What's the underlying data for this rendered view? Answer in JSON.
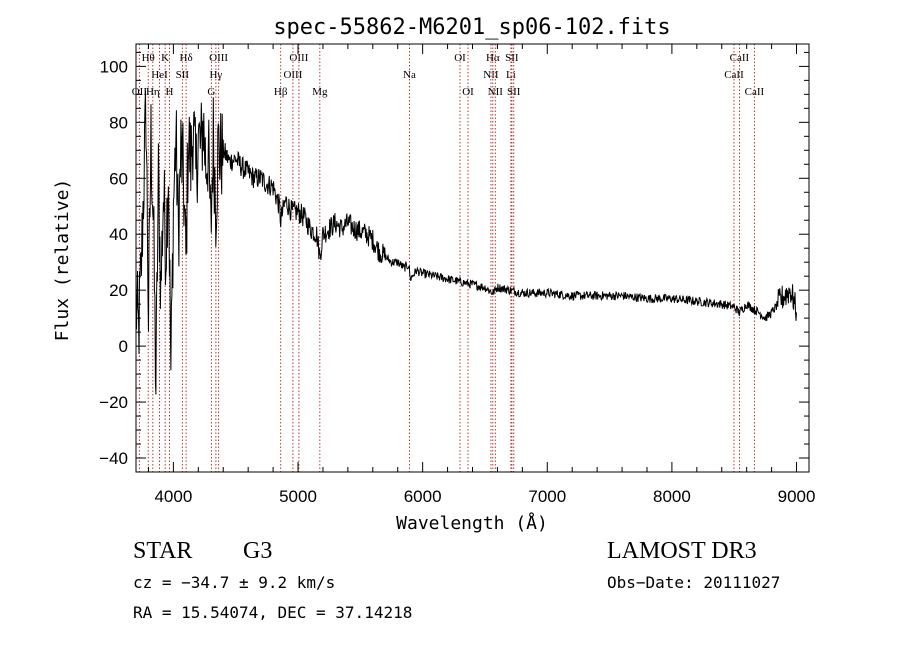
{
  "chart_data": {
    "type": "line",
    "title": "spec-55862-M6201_sp06-102.fits",
    "xlabel": "Wavelength (Å)",
    "ylabel": "Flux (relative)",
    "xlim": [
      3700,
      9100
    ],
    "ylim": [
      -45,
      108
    ],
    "x_ticks": [
      4000,
      5000,
      6000,
      7000,
      8000,
      9000
    ],
    "x_tick_labels": [
      "4000",
      "5000",
      "6000",
      "7000",
      "8000",
      "9000"
    ],
    "y_ticks": [
      -40,
      -20,
      0,
      20,
      40,
      60,
      80,
      100
    ],
    "y_tick_labels": [
      "−40",
      "−20",
      "0",
      "20",
      "40",
      "60",
      "80",
      "100"
    ],
    "x_minor_step": 200,
    "y_minor_step": 5,
    "line_color": "#000000",
    "marker_color": "#b22222",
    "series": [
      {
        "name": "flux",
        "x": [
          3700,
          3720,
          3740,
          3760,
          3780,
          3800,
          3820,
          3840,
          3860,
          3880,
          3900,
          3920,
          3940,
          3960,
          3980,
          4000,
          4020,
          4040,
          4060,
          4080,
          4100,
          4120,
          4140,
          4160,
          4180,
          4200,
          4220,
          4240,
          4260,
          4280,
          4300,
          4320,
          4340,
          4360,
          4380,
          4400,
          4450,
          4500,
          4550,
          4600,
          4650,
          4700,
          4750,
          4800,
          4850,
          4861,
          4900,
          4950,
          5000,
          5050,
          5100,
          5150,
          5175,
          5200,
          5250,
          5300,
          5350,
          5400,
          5450,
          5500,
          5550,
          5600,
          5650,
          5700,
          5750,
          5800,
          5850,
          5890,
          5900,
          5950,
          6000,
          6100,
          6200,
          6300,
          6400,
          6500,
          6563,
          6600,
          6700,
          6800,
          6900,
          7000,
          7200,
          7400,
          7600,
          7800,
          8000,
          8200,
          8400,
          8500,
          8542,
          8600,
          8662,
          8700,
          8750,
          8800,
          8850,
          8900,
          8950,
          8980,
          9000
        ],
        "y": [
          15,
          5,
          25,
          55,
          85,
          10,
          75,
          45,
          -15,
          60,
          20,
          55,
          35,
          65,
          -10,
          50,
          75,
          40,
          70,
          60,
          30,
          75,
          65,
          80,
          60,
          75,
          70,
          80,
          65,
          70,
          40,
          75,
          50,
          72,
          68,
          70,
          66,
          67,
          64,
          62,
          60,
          60,
          58,
          57,
          50,
          45,
          52,
          48,
          48,
          46,
          42,
          40,
          32,
          40,
          42,
          44,
          42,
          44,
          42,
          41,
          40,
          38,
          34,
          32,
          30,
          30,
          28,
          29,
          24,
          27,
          26,
          25,
          24,
          23,
          22,
          21,
          19,
          21,
          20,
          19,
          19,
          19,
          18,
          18,
          18,
          17,
          17,
          16,
          15,
          14,
          12,
          15,
          13,
          12,
          10,
          12,
          15,
          18,
          20,
          16,
          12
        ]
      }
    ],
    "line_markers": [
      {
        "name": "OII",
        "x": 3727,
        "row": 2
      },
      {
        "name": "Hθ",
        "x": 3798,
        "row": 0
      },
      {
        "name": "Hη",
        "x": 3835,
        "row": 2
      },
      {
        "name": "HeI",
        "x": 3889,
        "row": 1
      },
      {
        "name": "K",
        "x": 3934,
        "row": 0
      },
      {
        "name": "H",
        "x": 3969,
        "row": 2
      },
      {
        "name": "SII",
        "x": 4072,
        "row": 1
      },
      {
        "name": "Hδ",
        "x": 4102,
        "row": 0
      },
      {
        "name": "G",
        "x": 4305,
        "row": 2
      },
      {
        "name": "Hγ",
        "x": 4341,
        "row": 1
      },
      {
        "name": "OIII",
        "x": 4363,
        "row": 0
      },
      {
        "name": "Hβ",
        "x": 4861,
        "row": 2
      },
      {
        "name": "OIII",
        "x": 4959,
        "row": 1
      },
      {
        "name": "OIII",
        "x": 5007,
        "row": 0
      },
      {
        "name": "Mg",
        "x": 5175,
        "row": 2
      },
      {
        "name": "Na",
        "x": 5894,
        "row": 1
      },
      {
        "name": "OI",
        "x": 6300,
        "row": 0
      },
      {
        "name": "OI",
        "x": 6364,
        "row": 2
      },
      {
        "name": "NII",
        "x": 6548,
        "row": 1
      },
      {
        "name": "Hα",
        "x": 6563,
        "row": 0
      },
      {
        "name": "NII",
        "x": 6583,
        "row": 2
      },
      {
        "name": "Li",
        "x": 6708,
        "row": 1
      },
      {
        "name": "SII",
        "x": 6716,
        "row": 0
      },
      {
        "name": "SII",
        "x": 6731,
        "row": 2
      },
      {
        "name": "CaII",
        "x": 8498,
        "row": 1
      },
      {
        "name": "CaII",
        "x": 8542,
        "row": 0
      },
      {
        "name": "CaII",
        "x": 8662,
        "row": 2
      }
    ]
  },
  "info": {
    "class_label": "STAR",
    "subclass": "G3",
    "survey": "LAMOST DR3",
    "redshift": "cz = −34.7 ± 9.2 km/s",
    "obs_date": "Obs−Date: 20111027",
    "coords": "RA =  15.54074, DEC =  37.14218"
  }
}
